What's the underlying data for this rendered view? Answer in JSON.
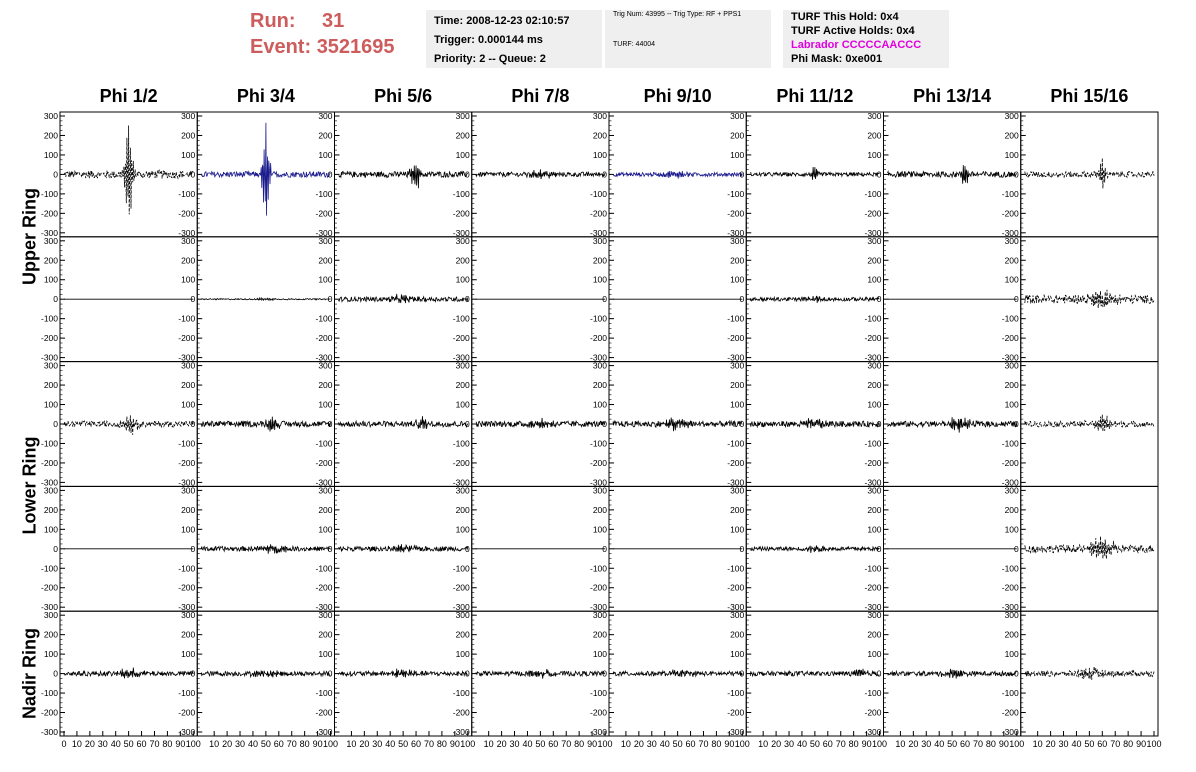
{
  "header": {
    "run_label": "Run:",
    "run_value": "31",
    "event_label": "Event:",
    "event_value": "3521695"
  },
  "time_box": {
    "time": "Time: 2008-12-23 02:10:57",
    "trigger": "Trigger: 0.000144 ms",
    "priority": "Priority: 2 -- Queue: 2"
  },
  "trig_box": {
    "trig_num": "Trig Num: 43995 -- Trig Type: RF + PPS1",
    "turf": "TURF: 44004"
  },
  "turf_box": {
    "this_hold": "TURF This Hold: 0x4",
    "active_holds": "TURF Active Holds: 0x4",
    "labrador": "Labrador CCCCCAACCC",
    "phi_mask": "Phi Mask: 0xe001"
  },
  "columns": [
    "Phi 1/2",
    "Phi 3/4",
    "Phi 5/6",
    "Phi 7/8",
    "Phi 9/10",
    "Phi 11/12",
    "Phi 13/14",
    "Phi 15/16"
  ],
  "rings": [
    "Upper Ring",
    "Lower Ring",
    "Nadir Ring"
  ],
  "colors": {
    "run_text": "#cd5c5c",
    "info_bg": "#efefef",
    "labrador": "#e000e0",
    "trace": "#000000",
    "highlight_trace": "#1a1a8c"
  },
  "chart_data": {
    "type": "line",
    "ylim": [
      -300,
      300
    ],
    "xlim": [
      0,
      100
    ],
    "y_ticks": [
      -300,
      -200,
      -100,
      0,
      100,
      200,
      300
    ],
    "x_tick_labels": [
      "0",
      "10",
      "20",
      "30",
      "40",
      "50",
      "60",
      "70",
      "80",
      "90",
      "100"
    ],
    "panels": [
      [
        {
          "amp": 20,
          "peak": 280,
          "center": 50,
          "width": 3,
          "style": "dashed"
        },
        {
          "amp": 15,
          "peak": 300,
          "center": 50,
          "width": 3,
          "style": "blue"
        },
        {
          "amp": 15,
          "peak": 90,
          "center": 60,
          "width": 4,
          "style": "solid"
        },
        {
          "amp": 12,
          "peak": 25,
          "center": 50,
          "width": 10,
          "style": "solid"
        },
        {
          "amp": 10,
          "peak": 20,
          "center": 50,
          "width": 10,
          "style": "blue"
        },
        {
          "amp": 10,
          "peak": 70,
          "center": 50,
          "width": 2,
          "style": "solid"
        },
        {
          "amp": 15,
          "peak": 70,
          "center": 60,
          "width": 3,
          "style": "solid"
        },
        {
          "amp": 15,
          "peak": 80,
          "center": 60,
          "width": 3,
          "style": "dashed"
        }
      ],
      [
        {
          "amp": 0,
          "peak": 0,
          "center": 50,
          "width": 5,
          "style": "flat"
        },
        {
          "amp": 3,
          "peak": 5,
          "center": 50,
          "width": 10,
          "style": "solid"
        },
        {
          "amp": 12,
          "peak": 20,
          "center": 50,
          "width": 10,
          "style": "solid"
        },
        {
          "amp": 0,
          "peak": 0,
          "center": 50,
          "width": 5,
          "style": "flat"
        },
        {
          "amp": 0,
          "peak": 0,
          "center": 50,
          "width": 5,
          "style": "flat"
        },
        {
          "amp": 10,
          "peak": 18,
          "center": 50,
          "width": 10,
          "style": "solid"
        },
        {
          "amp": 0,
          "peak": 0,
          "center": 50,
          "width": 5,
          "style": "flat"
        },
        {
          "amp": 22,
          "peak": 45,
          "center": 60,
          "width": 12,
          "style": "dashed"
        }
      ],
      [
        {
          "amp": 15,
          "peak": 50,
          "center": 52,
          "width": 6,
          "style": "dashed"
        },
        {
          "amp": 15,
          "peak": 70,
          "center": 55,
          "width": 4,
          "style": "solid"
        },
        {
          "amp": 15,
          "peak": 40,
          "center": 65,
          "width": 5,
          "style": "solid"
        },
        {
          "amp": 15,
          "peak": 30,
          "center": 50,
          "width": 10,
          "style": "solid"
        },
        {
          "amp": 15,
          "peak": 30,
          "center": 50,
          "width": 10,
          "style": "solid"
        },
        {
          "amp": 15,
          "peak": 30,
          "center": 50,
          "width": 10,
          "style": "solid"
        },
        {
          "amp": 15,
          "peak": 40,
          "center": 55,
          "width": 8,
          "style": "solid"
        },
        {
          "amp": 15,
          "peak": 40,
          "center": 60,
          "width": 8,
          "style": "dashed"
        }
      ],
      [
        {
          "amp": 0,
          "peak": 0,
          "center": 50,
          "width": 5,
          "style": "flat"
        },
        {
          "amp": 12,
          "peak": 25,
          "center": 55,
          "width": 10,
          "style": "solid"
        },
        {
          "amp": 12,
          "peak": 20,
          "center": 50,
          "width": 10,
          "style": "solid"
        },
        {
          "amp": 0,
          "peak": 0,
          "center": 50,
          "width": 5,
          "style": "flat"
        },
        {
          "amp": 0,
          "peak": 0,
          "center": 50,
          "width": 5,
          "style": "flat"
        },
        {
          "amp": 10,
          "peak": 15,
          "center": 50,
          "width": 10,
          "style": "solid"
        },
        {
          "amp": 0,
          "peak": 0,
          "center": 50,
          "width": 5,
          "style": "flat"
        },
        {
          "amp": 20,
          "peak": 60,
          "center": 60,
          "width": 10,
          "style": "dashed"
        }
      ],
      [
        {
          "amp": 12,
          "peak": 25,
          "center": 50,
          "width": 10,
          "style": "solid"
        },
        {
          "amp": 12,
          "peak": 20,
          "center": 50,
          "width": 10,
          "style": "solid"
        },
        {
          "amp": 12,
          "peak": 20,
          "center": 50,
          "width": 10,
          "style": "solid"
        },
        {
          "amp": 12,
          "peak": 20,
          "center": 50,
          "width": 10,
          "style": "solid"
        },
        {
          "amp": 12,
          "peak": 20,
          "center": 50,
          "width": 10,
          "style": "solid"
        },
        {
          "amp": 12,
          "peak": 25,
          "center": 85,
          "width": 5,
          "style": "solid"
        },
        {
          "amp": 12,
          "peak": 20,
          "center": 50,
          "width": 10,
          "style": "solid"
        },
        {
          "amp": 15,
          "peak": 35,
          "center": 50,
          "width": 8,
          "style": "dashed"
        }
      ]
    ]
  }
}
